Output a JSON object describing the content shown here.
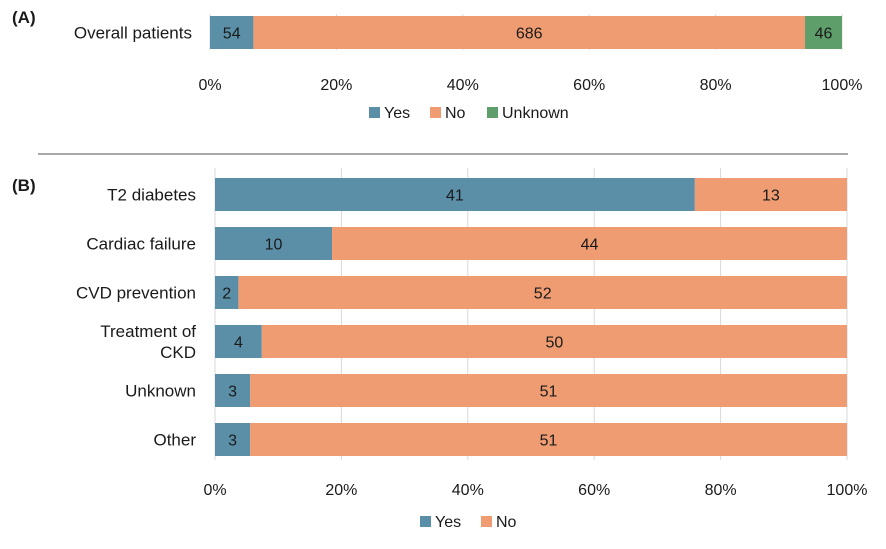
{
  "chart_data": [
    {
      "panel_label": "(A)",
      "type": "bar",
      "orientation": "horizontal",
      "stacked": "percent",
      "categories": [
        "Overall patients"
      ],
      "series": [
        {
          "name": "Yes",
          "values": [
            54
          ],
          "color": "#5b8fa8"
        },
        {
          "name": "No",
          "values": [
            686
          ],
          "color": "#ef9c72"
        },
        {
          "name": "Unknown",
          "values": [
            46
          ],
          "color": "#5e9e6a"
        }
      ],
      "x_ticks": [
        "0%",
        "20%",
        "40%",
        "60%",
        "80%",
        "100%"
      ],
      "xlim": [
        0,
        100
      ],
      "grid": true,
      "legend": "bottom"
    },
    {
      "panel_label": "(B)",
      "type": "bar",
      "orientation": "horizontal",
      "stacked": "percent",
      "categories": [
        "T2 diabetes",
        "Cardiac failure",
        "CVD prevention",
        "Treatment of CKD",
        "Unknown",
        "Other"
      ],
      "category_lines": [
        [
          "T2 diabetes"
        ],
        [
          "Cardiac failure"
        ],
        [
          "CVD prevention"
        ],
        [
          "Treatment of",
          "CKD"
        ],
        [
          "Unknown"
        ],
        [
          "Other"
        ]
      ],
      "series": [
        {
          "name": "Yes",
          "values": [
            41,
            10,
            2,
            4,
            3,
            3
          ],
          "color": "#5b8fa8"
        },
        {
          "name": "No",
          "values": [
            13,
            44,
            52,
            50,
            51,
            51
          ],
          "color": "#ef9c72"
        }
      ],
      "x_ticks": [
        "0%",
        "20%",
        "40%",
        "60%",
        "80%",
        "100%"
      ],
      "xlim": [
        0,
        100
      ],
      "grid": true,
      "legend": "bottom"
    }
  ]
}
